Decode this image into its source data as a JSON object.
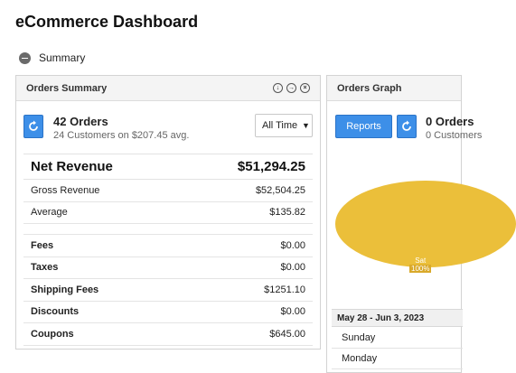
{
  "page": {
    "title": "eCommerce Dashboard"
  },
  "summary_toggle": {
    "label": "Summary"
  },
  "orders_summary": {
    "title": "Orders Summary",
    "header_icons": [
      "download-icon",
      "forward-icon",
      "close-icon"
    ],
    "orders_count": "42 Orders",
    "subtitle": "24 Customers on $207.45 avg.",
    "range_select": "All Time",
    "net_revenue": {
      "label": "Net Revenue",
      "value": "$51,294.25"
    },
    "rows": [
      {
        "label": "Gross Revenue",
        "value": "$52,504.25"
      },
      {
        "label": "Average",
        "value": "$135.82"
      }
    ],
    "fee_rows": [
      {
        "label": "Fees",
        "value": "$0.00"
      },
      {
        "label": "Taxes",
        "value": "$0.00"
      },
      {
        "label": "Shipping Fees",
        "value": "$1251.10"
      },
      {
        "label": "Discounts",
        "value": "$0.00"
      },
      {
        "label": "Coupons",
        "value": "$645.00"
      }
    ]
  },
  "orders_graph": {
    "title": "Orders Graph",
    "reports_button": "Reports",
    "count": "0 Orders",
    "subtitle": "0 Customers",
    "slice": {
      "label": "Sat",
      "percent": "100%"
    },
    "date_range": "May 28 - Jun 3, 2023",
    "days": [
      "Sunday",
      "Monday"
    ]
  },
  "colors": {
    "accent": "#3d8fe8",
    "pie": "#ebbf3a"
  }
}
